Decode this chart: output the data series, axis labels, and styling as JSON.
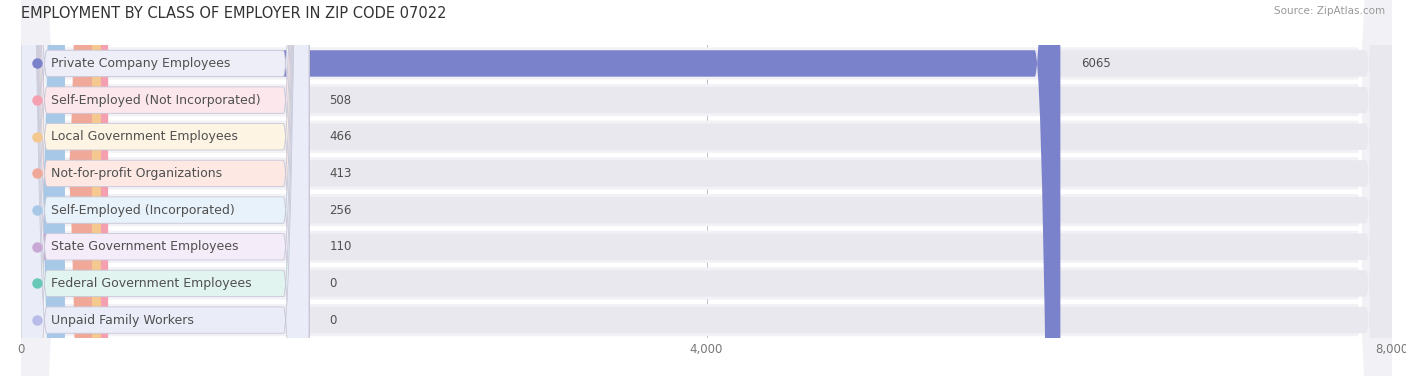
{
  "title": "EMPLOYMENT BY CLASS OF EMPLOYER IN ZIP CODE 07022",
  "source": "Source: ZipAtlas.com",
  "categories": [
    "Private Company Employees",
    "Self-Employed (Not Incorporated)",
    "Local Government Employees",
    "Not-for-profit Organizations",
    "Self-Employed (Incorporated)",
    "State Government Employees",
    "Federal Government Employees",
    "Unpaid Family Workers"
  ],
  "values": [
    6065,
    508,
    466,
    413,
    256,
    110,
    0,
    0
  ],
  "bar_colors": [
    "#7b82cc",
    "#f5a0b0",
    "#f5c890",
    "#f0a898",
    "#a8c8e8",
    "#c8a8d4",
    "#68c8b8",
    "#b8bce8"
  ],
  "label_bg_colors": [
    "#eeeef8",
    "#fce8ec",
    "#fef4e4",
    "#fde8e4",
    "#e8f2fa",
    "#f4ecf8",
    "#e2f4f0",
    "#eaecf8"
  ],
  "row_bg_color": "#f2f2f6",
  "bar_track_color": "#e8e8ee",
  "xlim_max": 8000,
  "xticks": [
    0,
    4000,
    8000
  ],
  "title_fontsize": 10.5,
  "label_fontsize": 9,
  "value_fontsize": 8.5,
  "source_fontsize": 7.5
}
